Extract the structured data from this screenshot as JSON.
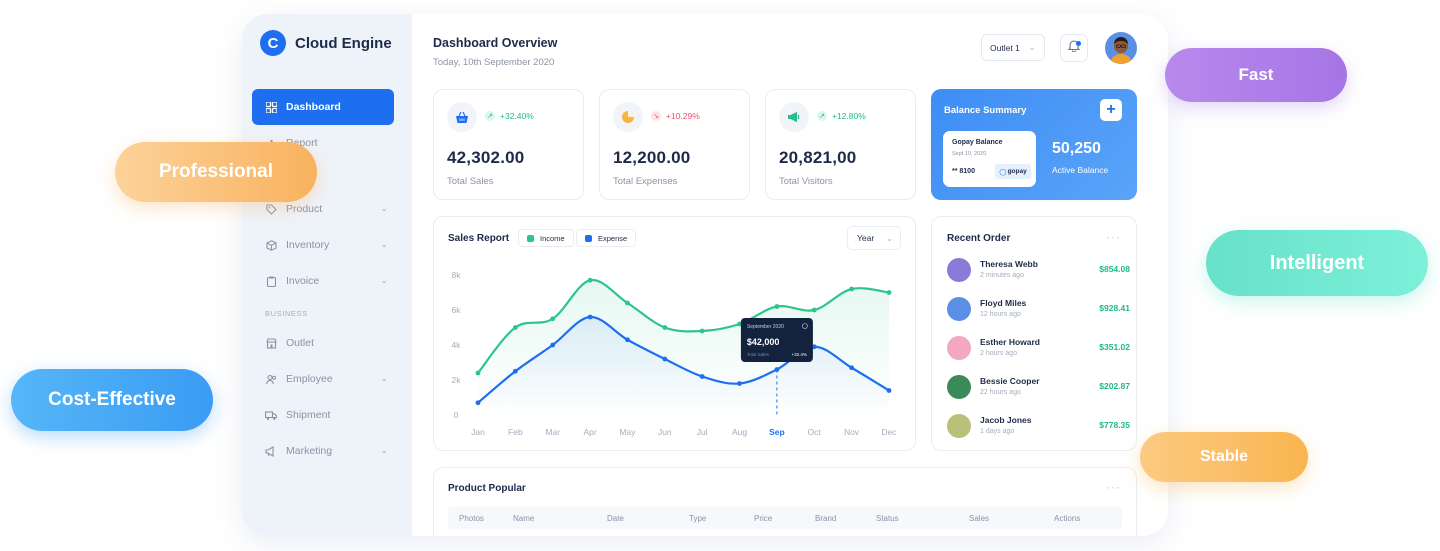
{
  "brand": {
    "logo_letter": "C",
    "name": "Cloud Engine"
  },
  "sidebar": {
    "items": [
      {
        "label": "Dashboard",
        "icon": "dashboard-icon",
        "active": true
      },
      {
        "label": "Report",
        "icon": "report-icon"
      },
      {
        "label": "Product",
        "icon": "tag-icon",
        "has_chevron": true
      },
      {
        "label": "Inventory",
        "icon": "box-icon",
        "has_chevron": true
      },
      {
        "label": "Invoice",
        "icon": "clipboard-icon",
        "has_chevron": true
      }
    ],
    "section_label": "BUSINESS",
    "business_items": [
      {
        "label": "Outlet",
        "icon": "store-icon"
      },
      {
        "label": "Employee",
        "icon": "users-icon",
        "has_chevron": true
      },
      {
        "label": "Shipment",
        "icon": "truck-icon"
      },
      {
        "label": "Marketing",
        "icon": "megaphone-icon",
        "has_chevron": true
      }
    ]
  },
  "header": {
    "title": "Dashboard Overview",
    "date": "Today, 10th September 2020",
    "outlet_select": "Outlet 1"
  },
  "stats": [
    {
      "value": "42,302.00",
      "label": "Total Sales",
      "change": "+32.40%",
      "trend": "up",
      "icon": "basket-icon",
      "icon_color": "#1e6ff0"
    },
    {
      "value": "12,200.00",
      "label": "Total Expenses",
      "change": "+10.29%",
      "trend": "down",
      "icon": "pie-icon",
      "icon_color": "#f7b544"
    },
    {
      "value": "20,821,00",
      "label": "Total Visitors",
      "change": "+12.80%",
      "trend": "up",
      "icon": "megaphone-icon",
      "icon_color": "#27c08a"
    }
  ],
  "balance": {
    "title": "Balance Summary",
    "card_title": "Gopay Balance",
    "card_date": "Sept 10, 2020",
    "card_number": "** 8100",
    "card_brand": "gopay",
    "value": "50,250",
    "label": "Active Balance"
  },
  "sales_report": {
    "title": "Sales Report",
    "legend_income": "Income",
    "legend_expense": "Expense",
    "range_select": "Year",
    "tooltip": {
      "date": "September 2020",
      "value": "$42,000",
      "sub_label": "Total Sales",
      "sub_change": "+32.4%"
    }
  },
  "chart_data": {
    "type": "line",
    "categories": [
      "Jan",
      "Feb",
      "Mar",
      "Apr",
      "May",
      "Jun",
      "Jul",
      "Aug",
      "Sep",
      "Oct",
      "Nov",
      "Dec"
    ],
    "y_ticks": [
      "0",
      "2k",
      "4k",
      "6k",
      "8k"
    ],
    "ylim": [
      0,
      8000
    ],
    "highlight_category": "Sep",
    "series": [
      {
        "name": "Income",
        "color": "#2cc58c",
        "values": [
          2400,
          5000,
          5500,
          7700,
          6400,
          5000,
          4800,
          5200,
          6200,
          6000,
          7200,
          7000
        ]
      },
      {
        "name": "Expense",
        "color": "#1e6ff0",
        "values": [
          700,
          2500,
          4000,
          5600,
          4300,
          3200,
          2200,
          1800,
          2600,
          3900,
          2700,
          1400
        ]
      }
    ]
  },
  "recent_orders": {
    "title": "Recent Order",
    "items": [
      {
        "name": "Theresa Webb",
        "time": "2 minutes ago",
        "amount": "$854.08",
        "avatar_color": "#8a7bd8"
      },
      {
        "name": "Floyd Miles",
        "time": "12 hours ago",
        "amount": "$928.41",
        "avatar_color": "#5b8fe6"
      },
      {
        "name": "Esther Howard",
        "time": "2 hours ago",
        "amount": "$351.02",
        "avatar_color": "#f2a7c3"
      },
      {
        "name": "Bessie Cooper",
        "time": "22 hours ago",
        "amount": "$202.87",
        "avatar_color": "#3c8a5a"
      },
      {
        "name": "Jacob Jones",
        "time": "1 days ago",
        "amount": "$778.35",
        "avatar_color": "#b8c07a"
      }
    ]
  },
  "product_popular": {
    "title": "Product Popular",
    "columns": [
      "Photos",
      "Name",
      "Date",
      "Type",
      "Price",
      "Brand",
      "Status",
      "Sales",
      "Actions"
    ]
  },
  "pills": {
    "professional": "Professional",
    "fast": "Fast",
    "intelligent": "Intelligent",
    "cost_effective": "Cost-Effective",
    "stable": "Stable"
  }
}
